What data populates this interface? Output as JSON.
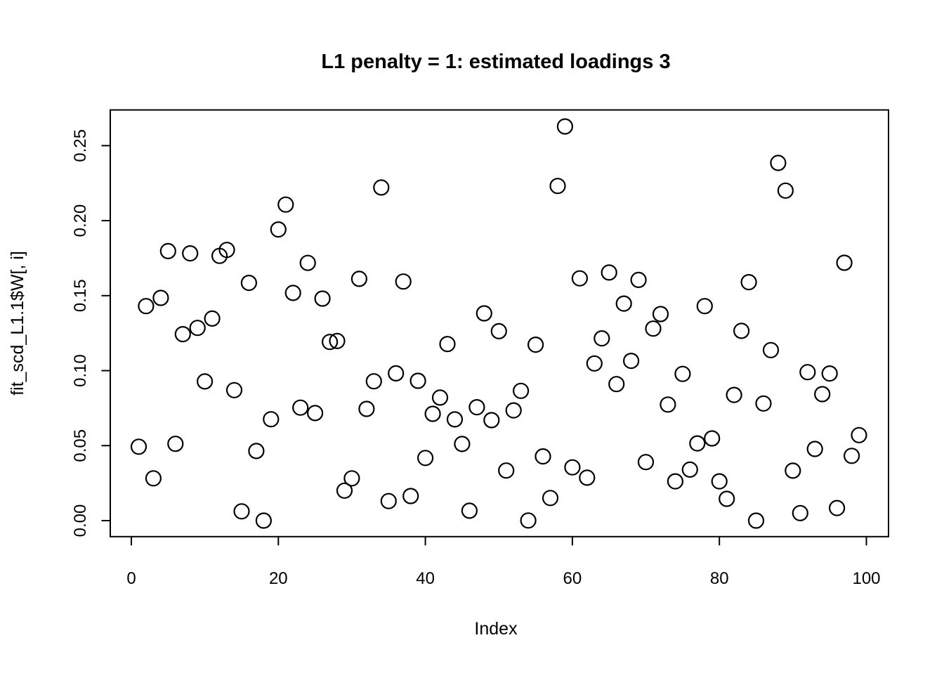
{
  "chart_data": {
    "type": "scatter",
    "title": "L1 penalty = 1: estimated loadings 3",
    "xlabel": "Index",
    "ylabel": "fit_scd_L1.1$W[, i]",
    "xlim": [
      0,
      100
    ],
    "ylim": [
      0.0,
      0.25
    ],
    "grid": false,
    "legend_position": "none",
    "marker": "open-circle",
    "colors": {
      "background": "#ffffff",
      "foreground": "#000000"
    },
    "x_ticks": [
      0,
      20,
      40,
      60,
      80,
      100
    ],
    "x_tick_labels": [
      "0",
      "20",
      "40",
      "60",
      "80",
      "100"
    ],
    "y_ticks": [
      0.0,
      0.05,
      0.1,
      0.15,
      0.2,
      0.25
    ],
    "y_tick_labels": [
      "0.00",
      "0.05",
      "0.10",
      "0.15",
      "0.20",
      "0.25"
    ],
    "series": [
      {
        "name": "fit_scd_L1.1$W[, i]",
        "x": [
          1,
          2,
          3,
          4,
          5,
          6,
          7,
          8,
          9,
          10,
          11,
          12,
          13,
          14,
          15,
          16,
          17,
          18,
          19,
          20,
          21,
          22,
          23,
          24,
          25,
          26,
          27,
          28,
          29,
          30,
          31,
          32,
          33,
          34,
          35,
          36,
          37,
          38,
          39,
          40,
          41,
          42,
          43,
          44,
          45,
          46,
          47,
          48,
          49,
          50,
          51,
          52,
          53,
          54,
          55,
          56,
          57,
          58,
          59,
          60,
          61,
          62,
          63,
          64,
          65,
          66,
          67,
          68,
          69,
          70,
          71,
          72,
          73,
          74,
          75,
          76,
          77,
          78,
          79,
          80,
          81,
          82,
          83,
          84,
          85,
          86,
          87,
          88,
          89,
          90,
          91,
          92,
          93,
          94,
          95,
          96,
          97,
          98,
          99
        ],
        "y": [
          0.0493,
          0.143,
          0.0282,
          0.1485,
          0.1797,
          0.0512,
          0.1243,
          0.1782,
          0.1285,
          0.0928,
          0.1347,
          0.1765,
          0.1805,
          0.087,
          0.0062,
          0.1585,
          0.0464,
          0.0,
          0.0676,
          0.1941,
          0.2107,
          0.1518,
          0.0753,
          0.1718,
          0.0717,
          0.148,
          0.1191,
          0.1198,
          0.02,
          0.0282,
          0.1612,
          0.0745,
          0.0929,
          0.2221,
          0.013,
          0.0982,
          0.1594,
          0.0164,
          0.0932,
          0.0418,
          0.0712,
          0.082,
          0.1177,
          0.0675,
          0.0511,
          0.0066,
          0.0756,
          0.1382,
          0.067,
          0.1263,
          0.0334,
          0.0735,
          0.0865,
          0.0001,
          0.1173,
          0.0428,
          0.0151,
          0.2231,
          0.2628,
          0.0355,
          0.1615,
          0.0286,
          0.1048,
          0.1215,
          0.1654,
          0.091,
          0.1447,
          0.1065,
          0.1605,
          0.039,
          0.128,
          0.1377,
          0.0774,
          0.0262,
          0.0978,
          0.034,
          0.0515,
          0.143,
          0.0548,
          0.0262,
          0.0145,
          0.0838,
          0.1265,
          0.159,
          0.0,
          0.0781,
          0.1137,
          0.2385,
          0.22,
          0.0333,
          0.005,
          0.099,
          0.0478,
          0.0843,
          0.0981,
          0.0084,
          0.1719,
          0.0432,
          0.057
        ]
      }
    ]
  }
}
